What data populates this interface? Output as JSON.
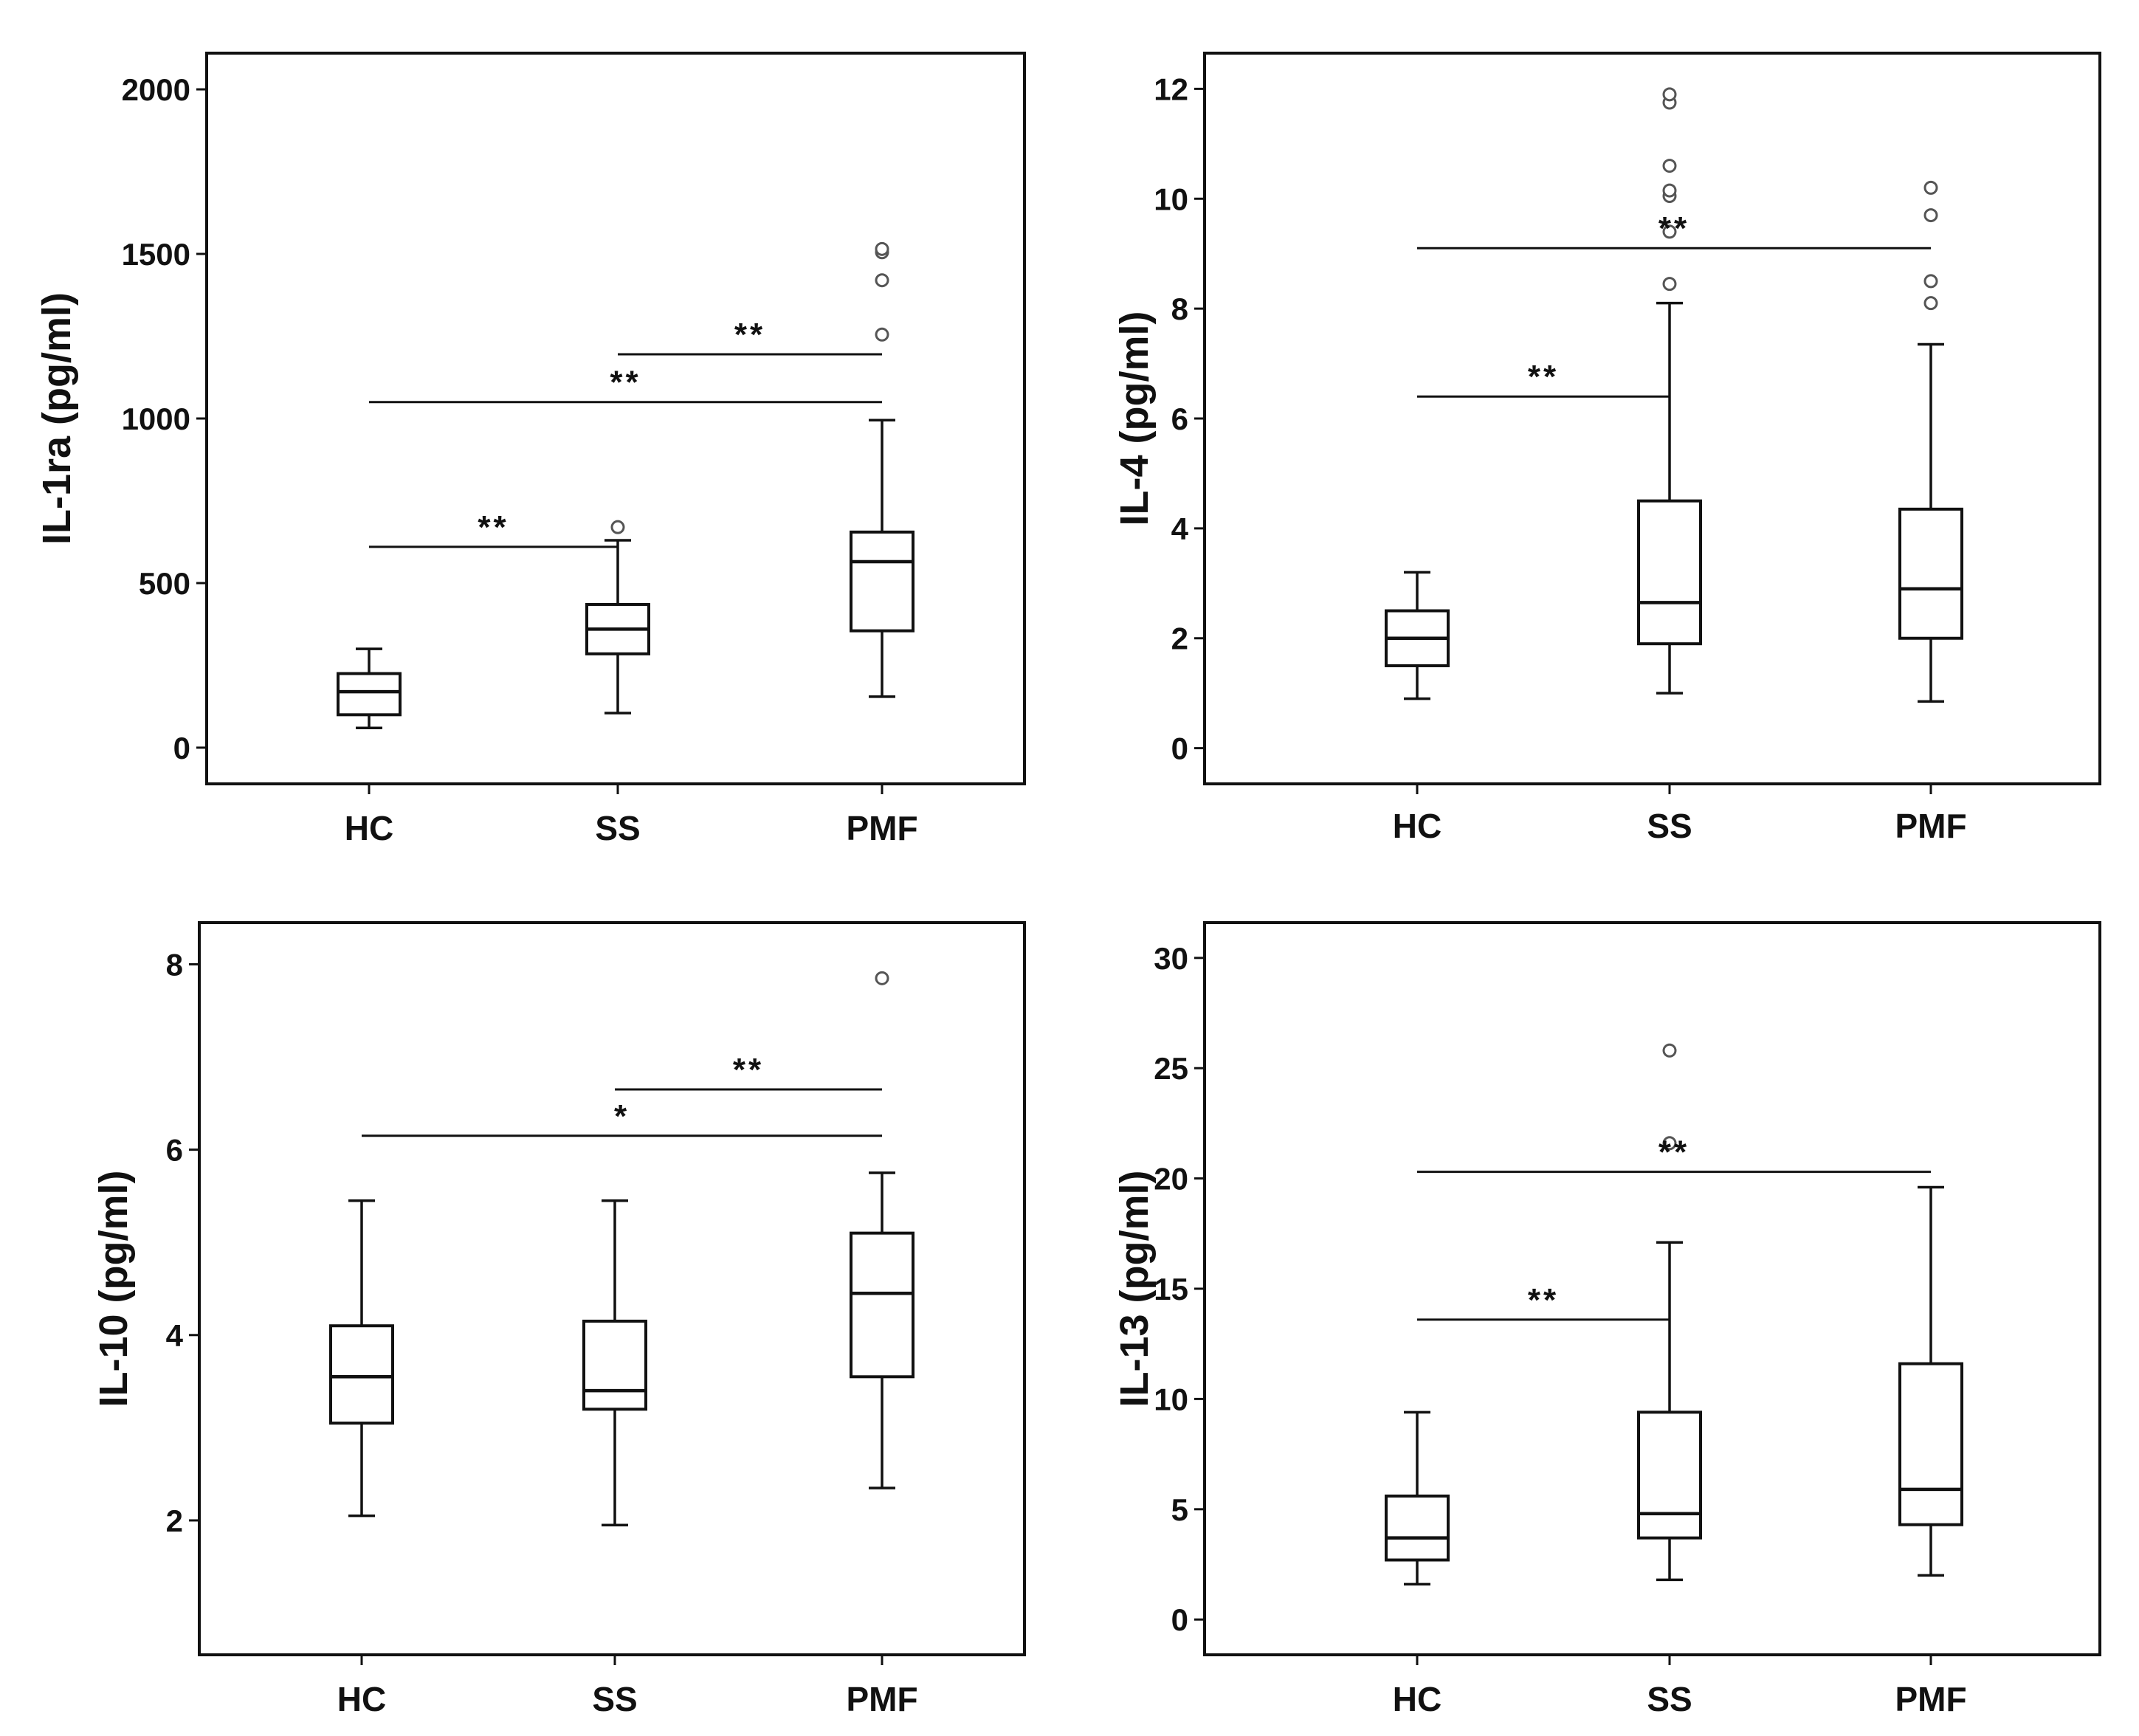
{
  "chart_data": [
    {
      "type": "box",
      "ylabel": "IL-1ra (pg/ml)",
      "categories": [
        "HC",
        "SS",
        "PMF"
      ],
      "ylim": [
        -110,
        2110
      ],
      "yticks": [
        0,
        500,
        1000,
        1500,
        2000
      ],
      "boxes": [
        {
          "name": "HC",
          "whisker_low": 60,
          "q1": 100,
          "median": 170,
          "q3": 225,
          "whisker_high": 300,
          "outliers": []
        },
        {
          "name": "SS",
          "whisker_low": 105,
          "q1": 285,
          "median": 360,
          "q3": 435,
          "whisker_high": 630,
          "outliers": [
            670
          ]
        },
        {
          "name": "PMF",
          "whisker_low": 155,
          "q1": 355,
          "median": 565,
          "q3": 655,
          "whisker_high": 995,
          "outliers": [
            1255,
            1420,
            1505,
            1515
          ]
        }
      ],
      "significance": [
        {
          "from": "HC",
          "to": "SS",
          "y": 610,
          "label": "**"
        },
        {
          "from": "HC",
          "to": "PMF",
          "y": 1050,
          "label": "**"
        },
        {
          "from": "SS",
          "to": "PMF",
          "y": 1195,
          "label": "**"
        }
      ]
    },
    {
      "type": "box",
      "ylabel": "IL-4 (pg/ml)",
      "categories": [
        "HC",
        "SS",
        "PMF"
      ],
      "ylim": [
        -0.65,
        12.65
      ],
      "yticks": [
        0,
        2,
        4,
        6,
        8,
        10,
        12
      ],
      "boxes": [
        {
          "name": "HC",
          "whisker_low": 0.9,
          "q1": 1.5,
          "median": 2.0,
          "q3": 2.5,
          "whisker_high": 3.2,
          "outliers": []
        },
        {
          "name": "SS",
          "whisker_low": 1.0,
          "q1": 1.9,
          "median": 2.65,
          "q3": 4.5,
          "whisker_high": 8.1,
          "outliers": [
            8.45,
            9.4,
            10.05,
            10.15,
            10.6,
            11.75,
            11.9
          ]
        },
        {
          "name": "PMF",
          "whisker_low": 0.85,
          "q1": 2.0,
          "median": 2.9,
          "q3": 4.35,
          "whisker_high": 7.35,
          "outliers": [
            8.1,
            8.5,
            9.7,
            10.2
          ]
        }
      ],
      "significance": [
        {
          "from": "HC",
          "to": "SS",
          "y": 6.4,
          "label": "**"
        },
        {
          "from": "HC",
          "to": "PMF",
          "y": 9.1,
          "label": "**"
        }
      ]
    },
    {
      "type": "box",
      "ylabel": "IL-10 (pg/ml)",
      "categories": [
        "HC",
        "SS",
        "PMF"
      ],
      "ylim": [
        0.55,
        8.45
      ],
      "yticks": [
        2,
        4,
        6,
        8
      ],
      "boxes": [
        {
          "name": "HC",
          "whisker_low": 2.05,
          "q1": 3.05,
          "median": 3.55,
          "q3": 4.1,
          "whisker_high": 5.45,
          "outliers": []
        },
        {
          "name": "SS",
          "whisker_low": 1.95,
          "q1": 3.2,
          "median": 3.4,
          "q3": 4.15,
          "whisker_high": 5.45,
          "outliers": []
        },
        {
          "name": "PMF",
          "whisker_low": 2.35,
          "q1": 3.55,
          "median": 4.45,
          "q3": 5.1,
          "whisker_high": 5.75,
          "outliers": [
            7.85
          ]
        }
      ],
      "significance": [
        {
          "from": "HC",
          "to": "PMF",
          "y": 6.15,
          "label": "*"
        },
        {
          "from": "SS",
          "to": "PMF",
          "y": 6.65,
          "label": "**"
        }
      ]
    },
    {
      "type": "box",
      "ylabel": "IL-13 (pg/ml)",
      "categories": [
        "HC",
        "SS",
        "PMF"
      ],
      "ylim": [
        -1.6,
        31.6
      ],
      "yticks": [
        0,
        5,
        10,
        15,
        20,
        25,
        30
      ],
      "boxes": [
        {
          "name": "HC",
          "whisker_low": 1.6,
          "q1": 2.7,
          "median": 3.7,
          "q3": 5.6,
          "whisker_high": 9.4,
          "outliers": []
        },
        {
          "name": "SS",
          "whisker_low": 1.8,
          "q1": 3.7,
          "median": 4.8,
          "q3": 9.4,
          "whisker_high": 17.1,
          "outliers": [
            21.6,
            25.8
          ]
        },
        {
          "name": "PMF",
          "whisker_low": 2.0,
          "q1": 4.3,
          "median": 5.9,
          "q3": 11.6,
          "whisker_high": 19.6,
          "outliers": []
        }
      ],
      "significance": [
        {
          "from": "HC",
          "to": "SS",
          "y": 13.6,
          "label": "**"
        },
        {
          "from": "HC",
          "to": "PMF",
          "y": 20.3,
          "label": "**"
        }
      ]
    }
  ]
}
